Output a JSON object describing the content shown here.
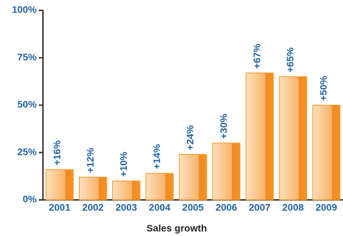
{
  "chart_data": {
    "type": "bar",
    "title": "Sales growth",
    "categories": [
      "2001",
      "2002",
      "2003",
      "2004",
      "2005",
      "2006",
      "2007",
      "2008",
      "2009"
    ],
    "values": [
      16,
      12,
      10,
      14,
      24,
      30,
      67,
      65,
      50
    ],
    "value_labels": [
      "+16%",
      "+12%",
      "+10%",
      "+14%",
      "+24%",
      "+30%",
      "+67%",
      "+65%",
      "+50%"
    ],
    "color": "#f7941d",
    "ylim": [
      0,
      100
    ],
    "yticks": [
      {
        "value": 0,
        "label": "0%"
      },
      {
        "value": 25,
        "label": "25%"
      },
      {
        "value": 50,
        "label": "50%"
      },
      {
        "value": 75,
        "label": "75%"
      },
      {
        "value": 100,
        "label": "100%"
      }
    ],
    "grid": false
  }
}
